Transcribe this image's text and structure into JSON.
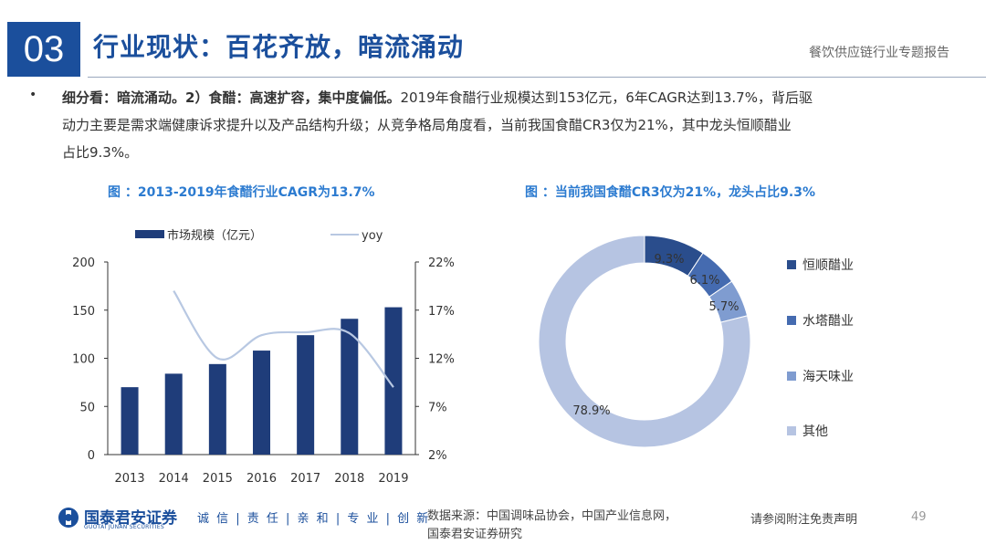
{
  "header": {
    "section_number": "03",
    "section_title": "行业现状：百花齐放，暗流涌动",
    "report_name": "餐饮供应链行业专题报告"
  },
  "body": {
    "bullet": "•",
    "lead_bold": "细分看：暗流涌动。2）食醋：高速扩容，集中度偏低。",
    "text_line1": "2019年食醋行业规模达到153亿元，6年CAGR达到13.7%，背后驱",
    "text_line2": "动力主要是需求端健康诉求提升以及产品结构升级；从竞争格局角度看，当前我国食醋CR3仅为21%，其中龙头恒顺醋业",
    "text_line3": "占比9.3%。"
  },
  "chart_data": [
    {
      "type": "bar",
      "title": "图 ：2013-2019年食醋行业CAGR为13.7%",
      "categories": [
        "2013",
        "2014",
        "2015",
        "2016",
        "2017",
        "2018",
        "2019"
      ],
      "series": [
        {
          "name": "市场规模（亿元）",
          "type": "bar",
          "axis": "left",
          "color": "#1f3d7a",
          "values": [
            70,
            84,
            94,
            108,
            124,
            141,
            153
          ]
        },
        {
          "name": "yoy",
          "type": "line",
          "axis": "right",
          "color": "#b8c8e2",
          "values": [
            null,
            19.0,
            12.0,
            14.4,
            14.7,
            14.6,
            9.0
          ]
        }
      ],
      "ylim_left": [
        0,
        200
      ],
      "yticks_left": [
        "0",
        "50",
        "100",
        "150",
        "200"
      ],
      "ylim_right": [
        2,
        22
      ],
      "yticks_right": [
        "2%",
        "7%",
        "12%",
        "17%",
        "22%"
      ],
      "legend_position": "top",
      "grid": false
    },
    {
      "type": "pie",
      "subtype": "donut",
      "title": "图 ：当前我国食醋CR3仅为21%，龙头占比9.3%",
      "slices": [
        {
          "label": "恒顺醋业",
          "value": 9.3,
          "display": "9.3%",
          "color": "#2a4d8c"
        },
        {
          "label": "水塔醋业",
          "value": 6.1,
          "display": "6.1%",
          "color": "#456bb0"
        },
        {
          "label": "海天味业",
          "value": 5.7,
          "display": "5.7%",
          "color": "#7f9cd0"
        },
        {
          "label": "其他",
          "value": 78.9,
          "display": "78.9%",
          "color": "#b6c4e2"
        }
      ],
      "legend_position": "right"
    }
  ],
  "footer": {
    "logo_cn": "国泰君安证券",
    "logo_en": "GUOTAI JUNAN SECURITIES",
    "slogan": "诚 信 | 责 任 | 亲 和 | 专 业 | 创 新",
    "source_line1": "数据来源：中国调味品协会，中国产业信息网，",
    "source_line2": "国泰君安证券研究",
    "disclaimer": "请参阅附注免责声明",
    "page": "49"
  },
  "colors": {
    "brand": "#1b4f9c",
    "chart_title": "#2c7bd0"
  }
}
